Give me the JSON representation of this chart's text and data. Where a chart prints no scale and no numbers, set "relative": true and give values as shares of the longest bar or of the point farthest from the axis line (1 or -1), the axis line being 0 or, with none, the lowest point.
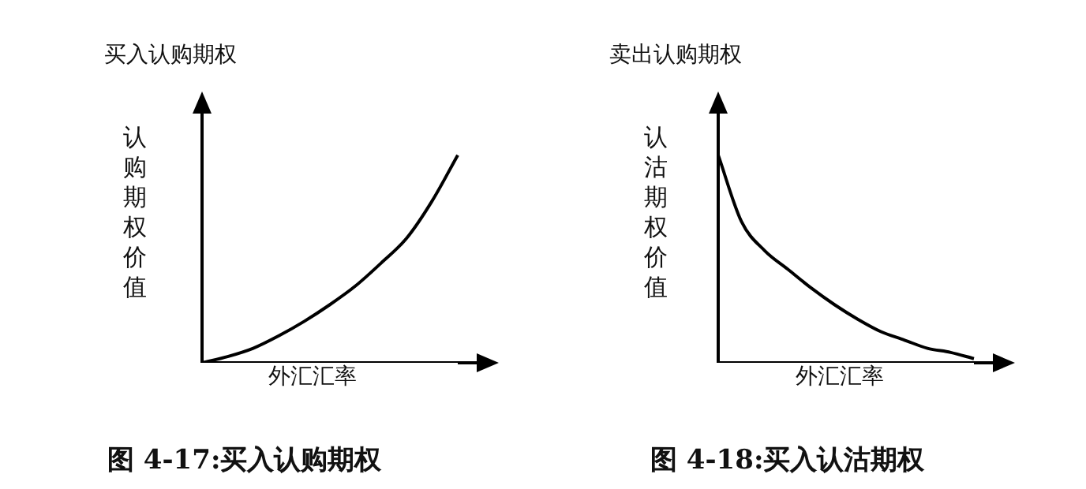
{
  "chart_data": [
    {
      "type": "line",
      "title": "买入认购期权",
      "xlabel": "外汇汇率",
      "ylabel": "认购期权价值",
      "relative": true,
      "categories": [
        null,
        null,
        null,
        null,
        null,
        null,
        null,
        null,
        null,
        null,
        null
      ],
      "series": [
        {
          "color": "#000000",
          "values": [
            0,
            0.03,
            0.07,
            0.13,
            0.2,
            0.28,
            0.37,
            0.48,
            0.6,
            0.78,
            1
          ]
        }
      ],
      "annotations": [
        "图 4-17:买入认购期权"
      ],
      "legend": false,
      "grid": false,
      "marker": "none",
      "line_style": "solid"
    },
    {
      "type": "line",
      "title": "卖出认购期权",
      "xlabel": "外汇汇率",
      "ylabel": "认沽期权价值",
      "relative": true,
      "categories": [
        null,
        null,
        null,
        null,
        null,
        null,
        null,
        null,
        null,
        null,
        null,
        null
      ],
      "series": [
        {
          "color": "#000000",
          "values": [
            1,
            0.68,
            0.54,
            0.45,
            0.36,
            0.28,
            0.21,
            0.15,
            0.11,
            0.07,
            0.05,
            0.02
          ]
        }
      ],
      "annotations": [
        "图 4-18:买入认沽期权"
      ],
      "legend": false,
      "grid": false,
      "marker": "none",
      "line_style": "solid"
    }
  ]
}
